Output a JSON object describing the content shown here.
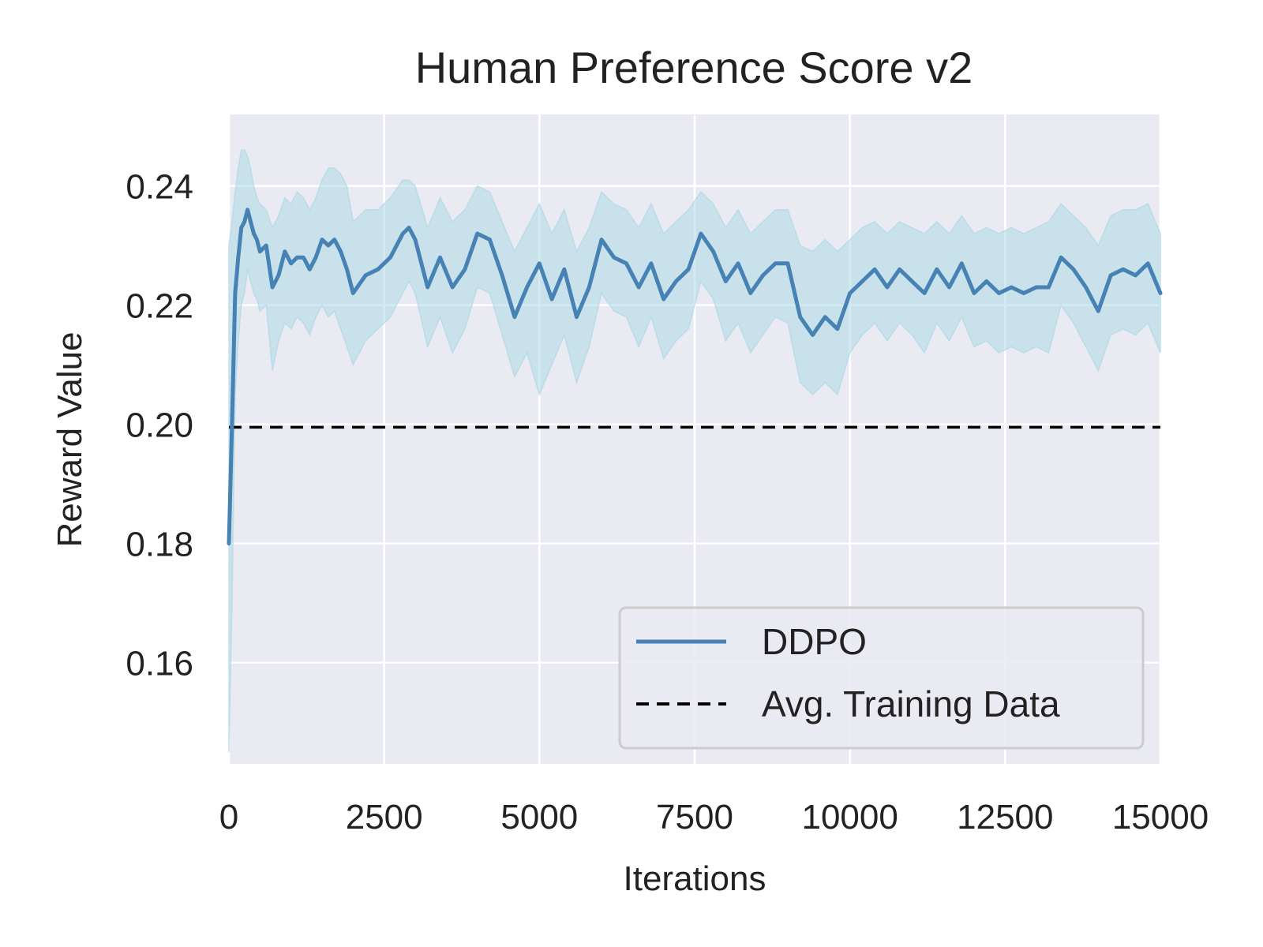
{
  "chart_data": {
    "type": "line",
    "title": "Human Preference Score v2",
    "xlabel": "Iterations",
    "ylabel": "Reward Value",
    "xlim": [
      0,
      15000
    ],
    "ylim": [
      0.143,
      0.252
    ],
    "xticks": [
      0,
      2500,
      5000,
      7500,
      10000,
      12500,
      15000
    ],
    "xtick_labels": [
      "0",
      "2500",
      "5000",
      "7500",
      "10000",
      "12500",
      "15000"
    ],
    "yticks": [
      0.16,
      0.18,
      0.2,
      0.22,
      0.24
    ],
    "ytick_labels": [
      "0.16",
      "0.18",
      "0.20",
      "0.22",
      "0.24"
    ],
    "grid": true,
    "legend_position": "lower-right",
    "series": [
      {
        "name": "DDPO",
        "color": "#4682b4",
        "band_color": "#add8e6",
        "x": [
          0,
          50,
          100,
          150,
          200,
          250,
          300,
          350,
          400,
          450,
          500,
          600,
          700,
          800,
          900,
          1000,
          1100,
          1200,
          1300,
          1400,
          1500,
          1600,
          1700,
          1800,
          1900,
          2000,
          2200,
          2400,
          2600,
          2800,
          2900,
          3000,
          3200,
          3400,
          3600,
          3800,
          4000,
          4200,
          4400,
          4600,
          4800,
          5000,
          5200,
          5400,
          5600,
          5800,
          6000,
          6200,
          6400,
          6600,
          6800,
          7000,
          7200,
          7400,
          7600,
          7800,
          8000,
          8200,
          8400,
          8600,
          8800,
          9000,
          9200,
          9400,
          9600,
          9800,
          10000,
          10200,
          10400,
          10600,
          10800,
          11000,
          11200,
          11400,
          11600,
          11800,
          12000,
          12200,
          12400,
          12600,
          12800,
          13000,
          13200,
          13400,
          13600,
          13800,
          14000,
          14200,
          14400,
          14600,
          14800,
          15000
        ],
        "values": [
          0.18,
          0.2,
          0.222,
          0.228,
          0.233,
          0.234,
          0.236,
          0.234,
          0.232,
          0.231,
          0.229,
          0.23,
          0.223,
          0.225,
          0.229,
          0.227,
          0.228,
          0.228,
          0.226,
          0.228,
          0.231,
          0.23,
          0.231,
          0.229,
          0.226,
          0.222,
          0.225,
          0.226,
          0.228,
          0.232,
          0.233,
          0.231,
          0.223,
          0.228,
          0.223,
          0.226,
          0.232,
          0.231,
          0.225,
          0.218,
          0.223,
          0.227,
          0.221,
          0.226,
          0.218,
          0.223,
          0.231,
          0.228,
          0.227,
          0.223,
          0.227,
          0.221,
          0.224,
          0.226,
          0.232,
          0.229,
          0.224,
          0.227,
          0.222,
          0.225,
          0.227,
          0.227,
          0.218,
          0.215,
          0.218,
          0.216,
          0.222,
          0.224,
          0.226,
          0.223,
          0.226,
          0.224,
          0.222,
          0.226,
          0.223,
          0.227,
          0.222,
          0.224,
          0.222,
          0.223,
          0.222,
          0.223,
          0.223,
          0.228,
          0.226,
          0.223,
          0.219,
          0.225,
          0.226,
          0.225,
          0.227,
          0.222
        ],
        "upper": [
          0.23,
          0.234,
          0.239,
          0.243,
          0.246,
          0.246,
          0.245,
          0.243,
          0.24,
          0.238,
          0.237,
          0.236,
          0.233,
          0.235,
          0.238,
          0.237,
          0.239,
          0.238,
          0.236,
          0.238,
          0.241,
          0.243,
          0.243,
          0.242,
          0.24,
          0.234,
          0.236,
          0.236,
          0.238,
          0.241,
          0.241,
          0.24,
          0.233,
          0.238,
          0.234,
          0.236,
          0.24,
          0.239,
          0.234,
          0.229,
          0.233,
          0.237,
          0.232,
          0.236,
          0.229,
          0.233,
          0.239,
          0.237,
          0.236,
          0.233,
          0.237,
          0.232,
          0.234,
          0.236,
          0.239,
          0.237,
          0.233,
          0.236,
          0.232,
          0.234,
          0.236,
          0.236,
          0.23,
          0.229,
          0.231,
          0.229,
          0.231,
          0.233,
          0.234,
          0.232,
          0.234,
          0.233,
          0.232,
          0.234,
          0.232,
          0.235,
          0.232,
          0.233,
          0.232,
          0.233,
          0.232,
          0.233,
          0.234,
          0.237,
          0.235,
          0.233,
          0.23,
          0.235,
          0.236,
          0.236,
          0.237,
          0.232
        ],
        "lower": [
          0.145,
          0.17,
          0.205,
          0.214,
          0.22,
          0.222,
          0.226,
          0.224,
          0.222,
          0.221,
          0.219,
          0.22,
          0.209,
          0.214,
          0.217,
          0.216,
          0.218,
          0.217,
          0.215,
          0.218,
          0.22,
          0.218,
          0.219,
          0.216,
          0.213,
          0.21,
          0.214,
          0.216,
          0.218,
          0.222,
          0.224,
          0.222,
          0.213,
          0.218,
          0.212,
          0.216,
          0.223,
          0.222,
          0.215,
          0.208,
          0.212,
          0.205,
          0.21,
          0.215,
          0.207,
          0.213,
          0.222,
          0.219,
          0.218,
          0.213,
          0.218,
          0.211,
          0.214,
          0.216,
          0.224,
          0.221,
          0.214,
          0.217,
          0.212,
          0.215,
          0.218,
          0.217,
          0.207,
          0.205,
          0.207,
          0.205,
          0.212,
          0.215,
          0.217,
          0.214,
          0.217,
          0.215,
          0.212,
          0.217,
          0.214,
          0.218,
          0.213,
          0.214,
          0.212,
          0.213,
          0.212,
          0.213,
          0.212,
          0.22,
          0.217,
          0.213,
          0.209,
          0.215,
          0.216,
          0.215,
          0.217,
          0.212
        ]
      }
    ],
    "reference_line": {
      "name": "Avg. Training Data",
      "value": 0.1995,
      "color": "#000000",
      "style": "dashed"
    }
  }
}
